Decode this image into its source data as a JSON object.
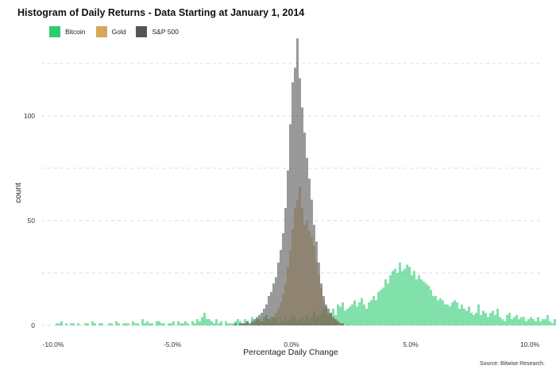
{
  "chart_data": {
    "type": "bar",
    "title": "Histogram of Daily Returns - Data Starting at January 1, 2014",
    "xlabel": "Percentage Daily Change",
    "ylabel": "count",
    "x_tick_labels": [
      "-10.0%",
      "-5.0%",
      "0.0%",
      "5.0%",
      "10.0%"
    ],
    "x_tick_values": [
      -10,
      -5,
      0,
      5,
      10
    ],
    "y_tick_values": [
      0,
      50,
      100
    ],
    "xlim": [
      -10.5,
      10.5
    ],
    "ylim": [
      0,
      125
    ],
    "grid": "dashed horizontal",
    "legend_position": "top-left",
    "bin_width": 0.1,
    "series": [
      {
        "name": "Bitcoin",
        "color": "#2ecc71",
        "bins_start": -10,
        "counts": [
          0,
          1,
          1,
          2,
          0,
          1,
          0,
          1,
          1,
          0,
          1,
          0,
          0,
          1,
          1,
          0,
          2,
          1,
          0,
          1,
          1,
          0,
          0,
          1,
          1,
          0,
          2,
          1,
          0,
          1,
          1,
          1,
          0,
          2,
          1,
          1,
          0,
          3,
          1,
          2,
          1,
          1,
          0,
          2,
          2,
          1,
          1,
          0,
          1,
          1,
          2,
          0,
          2,
          1,
          1,
          2,
          1,
          0,
          2,
          1,
          3,
          2,
          4,
          6,
          3,
          3,
          2,
          1,
          3,
          1,
          2,
          0,
          2,
          1,
          1,
          1,
          2,
          3,
          2,
          1,
          3,
          2,
          0,
          4,
          2,
          3,
          3,
          2,
          4,
          5,
          3,
          2,
          4,
          3,
          1,
          3,
          2,
          4,
          2,
          3,
          5,
          4,
          2,
          3,
          4,
          2,
          5,
          3,
          4,
          7,
          4,
          5,
          6,
          8,
          9,
          5,
          6,
          8,
          5,
          10,
          9,
          11,
          7,
          8,
          9,
          10,
          12,
          9,
          11,
          13,
          10,
          8,
          11,
          12,
          14,
          12,
          16,
          17,
          18,
          22,
          20,
          24,
          26,
          27,
          25,
          30,
          26,
          27,
          29,
          28,
          24,
          26,
          22,
          24,
          22,
          21,
          20,
          19,
          17,
          14,
          14,
          12,
          13,
          12,
          10,
          10,
          9,
          11,
          12,
          11,
          8,
          10,
          8,
          7,
          9,
          6,
          5,
          6,
          10,
          5,
          7,
          6,
          4,
          6,
          7,
          5,
          8,
          4,
          3,
          2,
          5,
          6,
          3,
          4,
          5,
          3,
          4,
          4,
          2,
          3,
          4,
          3,
          2,
          4,
          2,
          3,
          3,
          5,
          2,
          1,
          3,
          2,
          1,
          3,
          2,
          4,
          1,
          2,
          5,
          1,
          2,
          3,
          1,
          2,
          4,
          3,
          2,
          1,
          2,
          1,
          3,
          2,
          0,
          3,
          1,
          2,
          1,
          1,
          2,
          0,
          1,
          2,
          1,
          1,
          1,
          2,
          1,
          3,
          0,
          1,
          2,
          1,
          1,
          1,
          0,
          1,
          1,
          1,
          0,
          0,
          0,
          1,
          0,
          1,
          0,
          0,
          0,
          0,
          0,
          0,
          0
        ]
      },
      {
        "name": "Gold",
        "color": "#d4a85a",
        "bins_start": -2.5,
        "counts": [
          0,
          0,
          0,
          0,
          0,
          1,
          0,
          1,
          0,
          1,
          2,
          1,
          2,
          2,
          3,
          3,
          4,
          4,
          6,
          8,
          11,
          15,
          20,
          28,
          36,
          46,
          56,
          60,
          66,
          56,
          48,
          50,
          45,
          42,
          38,
          30,
          24,
          18,
          12,
          8,
          6,
          5,
          3,
          3,
          2,
          1,
          1,
          0,
          1,
          0,
          0
        ]
      },
      {
        "name": "S&P 500",
        "color": "#555555",
        "bins_start": -2.5,
        "counts": [
          0,
          1,
          0,
          1,
          1,
          1,
          2,
          1,
          2,
          3,
          4,
          5,
          6,
          8,
          10,
          14,
          16,
          20,
          23,
          30,
          36,
          44,
          56,
          74,
          96,
          116,
          123,
          137,
          118,
          104,
          92,
          80,
          70,
          60,
          48,
          40,
          30,
          20,
          14,
          10,
          8,
          6,
          4,
          3,
          2,
          1,
          1,
          0,
          0,
          0,
          0
        ]
      }
    ]
  },
  "source": "Source: Bitwise Research."
}
